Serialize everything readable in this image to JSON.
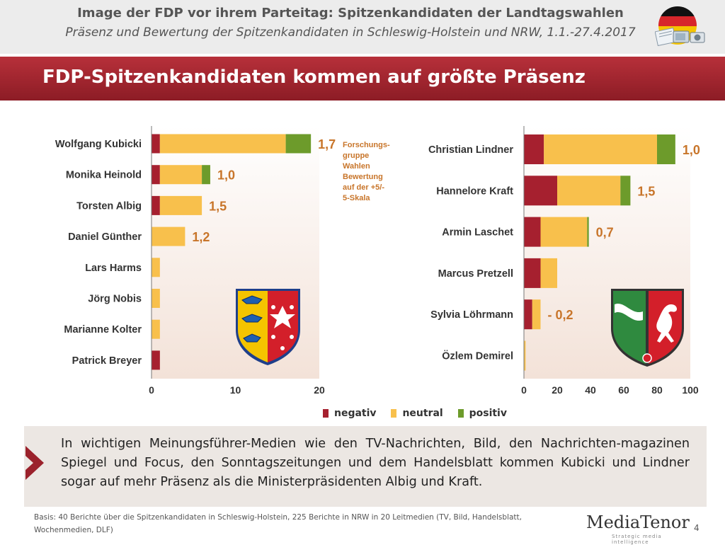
{
  "header": {
    "title": "Image der FDP vor ihrem Parteitag: Spitzenkandidaten der Landtagswahlen",
    "subtitle": "Präsenz und Bewertung der Spitzenkandidaten in Schleswig-Holstein und NRW, 1.1.-27.4.2017"
  },
  "headline": "FDP-Spitzenkandidaten kommen auf größte Präsenz",
  "note": {
    "line1": "Forschungs-",
    "line2": "gruppe",
    "line3": "Wahlen",
    "line4": "Bewertung",
    "line5": "auf der +5/-",
    "line6": "5-Skala"
  },
  "colors": {
    "negativ": "#a6202f",
    "neutral": "#f8c04c",
    "positiv": "#6d9b2b",
    "rating": "#c8752a",
    "headline_bar": "#9b222c"
  },
  "legend": {
    "negativ": "negativ",
    "neutral": "neutral",
    "positiv": "positiv"
  },
  "chart_data": [
    {
      "type": "bar",
      "orientation": "horizontal",
      "stacked": true,
      "categories": [
        "Wolfgang Kubicki",
        "Monika Heinold",
        "Torsten Albig",
        "Daniel Günther",
        "Lars Harms",
        "Jörg Nobis",
        "Marianne Kolter",
        "Patrick Breyer"
      ],
      "series": [
        {
          "name": "negativ",
          "values": [
            1,
            1,
            1,
            0,
            0,
            0,
            0,
            1
          ]
        },
        {
          "name": "neutral",
          "values": [
            15,
            5,
            5,
            4,
            1,
            1,
            1,
            0
          ]
        },
        {
          "name": "positiv",
          "values": [
            3,
            1,
            0,
            0,
            0,
            0,
            0,
            0
          ]
        }
      ],
      "ratings": [
        "1,7",
        "1,0",
        "1,5",
        "1,2",
        "",
        "",
        "",
        ""
      ],
      "xlim": [
        0,
        20
      ],
      "xticks": [
        "0",
        "10",
        "20"
      ],
      "grid": false
    },
    {
      "type": "bar",
      "orientation": "horizontal",
      "stacked": true,
      "categories": [
        "Christian Lindner",
        "Hannelore Kraft",
        "Armin Laschet",
        "Marcus Pretzell",
        "Sylvia Löhrmann",
        "Özlem Demirel"
      ],
      "series": [
        {
          "name": "negativ",
          "values": [
            12,
            20,
            10,
            10,
            5,
            0
          ]
        },
        {
          "name": "neutral",
          "values": [
            68,
            38,
            28,
            10,
            5,
            1
          ]
        },
        {
          "name": "positiv",
          "values": [
            11,
            6,
            1,
            0,
            0,
            0
          ]
        }
      ],
      "ratings": [
        "1,0",
        "1,5",
        "0,7",
        "",
        "- 0,2",
        ""
      ],
      "xlim": [
        0,
        100
      ],
      "xticks": [
        "0",
        "20",
        "40",
        "60",
        "80",
        "100"
      ],
      "grid": false
    }
  ],
  "callout": {
    "text": "In wichtigen Meinungsführer-Medien wie den TV-Nachrichten, Bild, den Nachrichten-magazinen Spiegel und Focus, den Sonntagszeitungen und dem Handelsblatt kommen Kubicki und Lindner sogar auf mehr Präsenz als die Ministerpräsidenten Albig und Kraft."
  },
  "footer": {
    "basis": "Basis: 40 Berichte über die Spitzenkandidaten in Schleswig-Holstein, 225 Berichte in NRW in 20 Leitmedien (TV, Bild, Handelsblatt, Wochenmedien, DLF)"
  },
  "logo": {
    "text": "MediaTenor",
    "tagline": "Strategic media intelligence"
  },
  "page_number": "4"
}
